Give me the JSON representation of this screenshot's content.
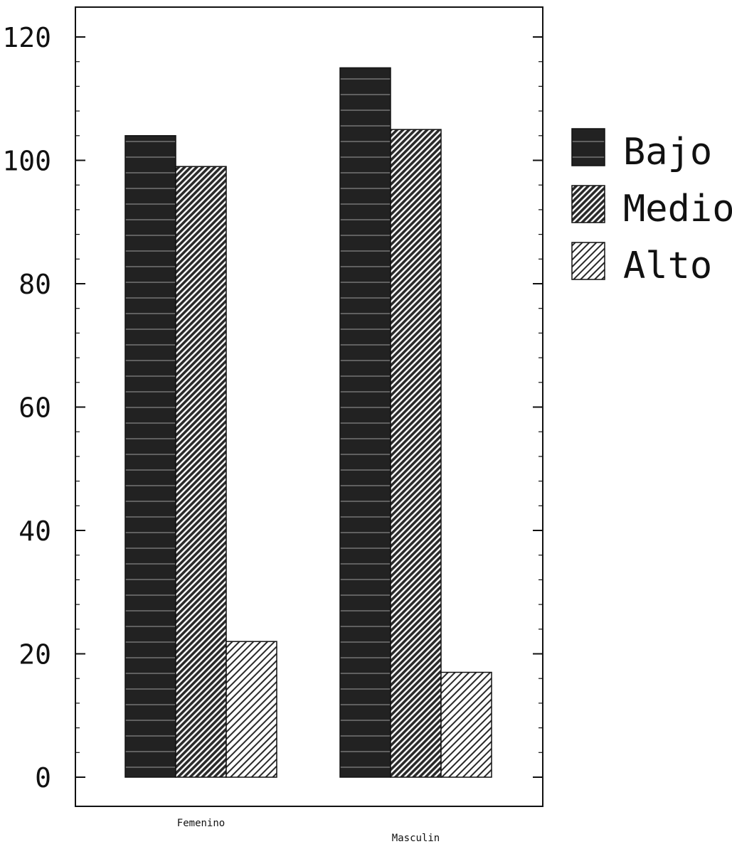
{
  "chart_data": {
    "type": "bar",
    "categories": [
      "Femenino",
      "Masculin"
    ],
    "series": [
      {
        "name": "Bajo",
        "values": [
          104,
          115
        ],
        "pattern": "dark-banded",
        "color": "#1f1f1f"
      },
      {
        "name": "Medio",
        "values": [
          99,
          105
        ],
        "pattern": "dense-diagonal",
        "color": "#3a3a3a"
      },
      {
        "name": "Alto",
        "values": [
          22,
          17
        ],
        "pattern": "sparse-diagonal",
        "color": "#5a5a5a"
      }
    ],
    "yticks": [
      "0",
      "20",
      "40",
      "60",
      "80",
      "100",
      "120"
    ],
    "ylim": [
      0,
      125
    ],
    "grid": false,
    "legend_position": "right"
  }
}
